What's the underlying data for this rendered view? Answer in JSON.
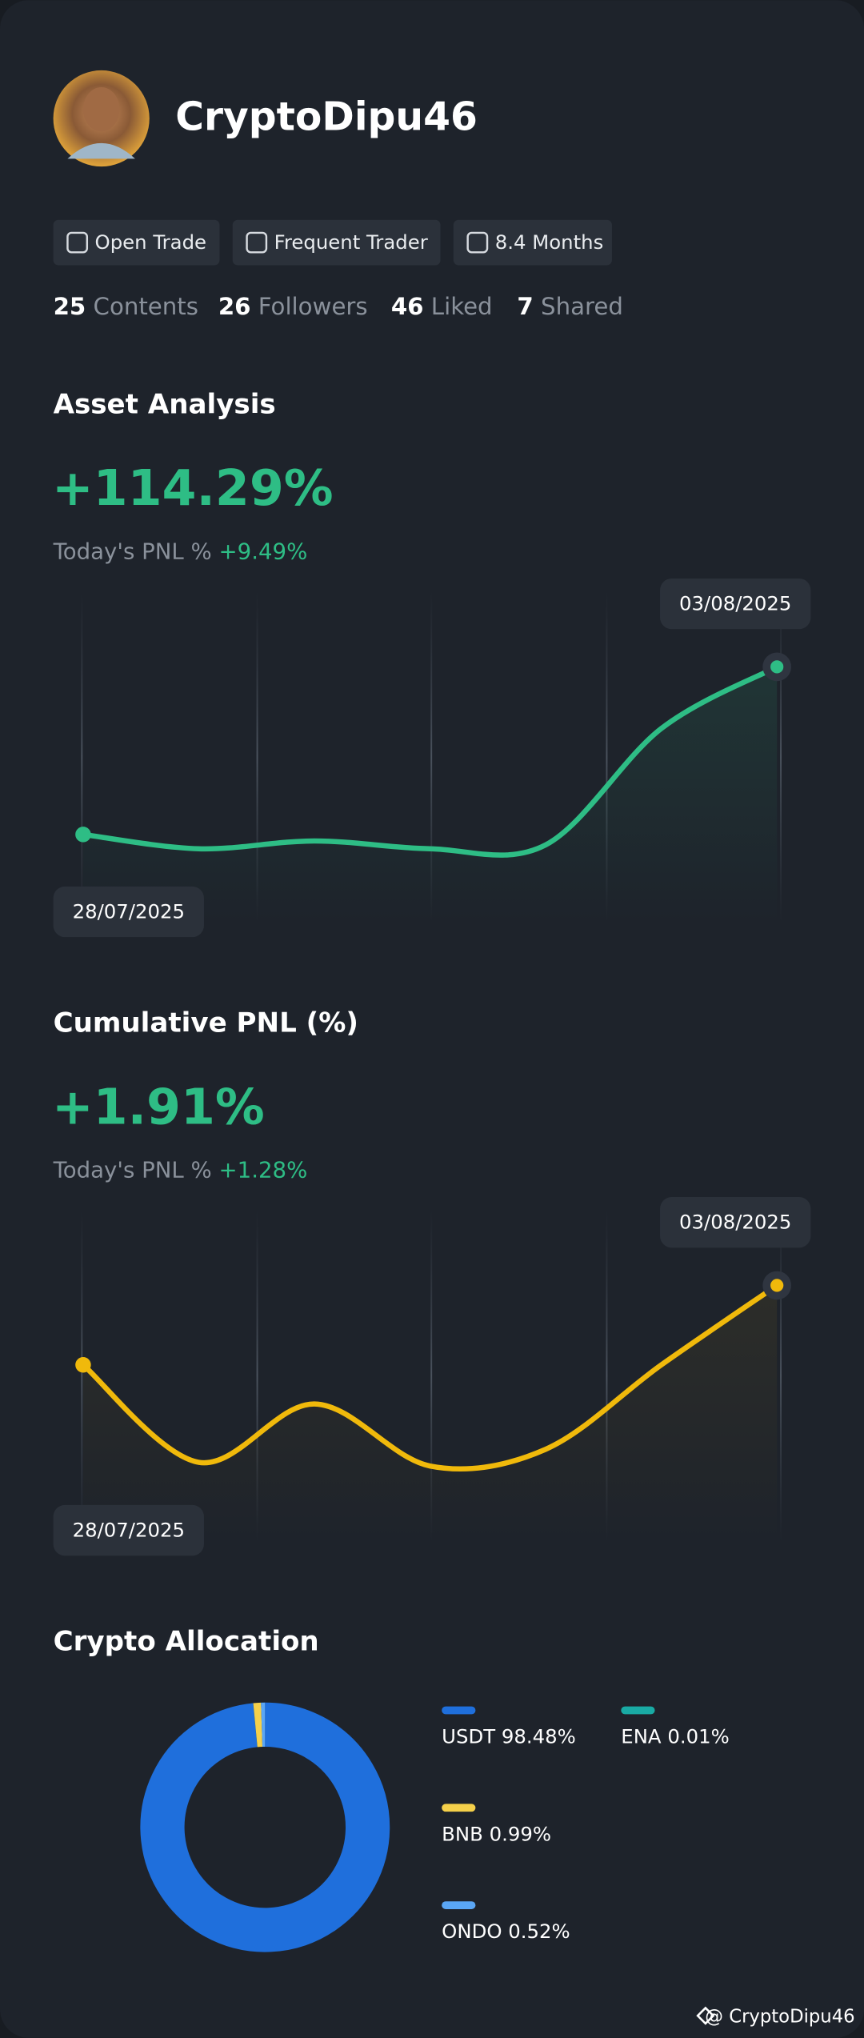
{
  "profile": {
    "name": "CryptoDipu46"
  },
  "badges": [
    "Open Trade",
    "Frequent Trader",
    "8.4 Months"
  ],
  "stats": [
    {
      "value": 25,
      "label": "Contents"
    },
    {
      "value": 26,
      "label": "Followers"
    },
    {
      "value": 46,
      "label": "Liked"
    },
    {
      "value": 7,
      "label": "Shared"
    }
  ],
  "chart_data": [
    {
      "type": "line",
      "title": "Asset Analysis",
      "headline": "+114.29%",
      "pnl_label": "Today's PNL %",
      "pnl_value": "+9.49%",
      "categories": [
        "28/07/2025",
        null,
        null,
        null,
        null,
        null,
        "03/08/2025"
      ],
      "series": [
        {
          "color": "#2ebd85",
          "values": [
            88.5,
            86.3,
            87.5,
            86.3,
            86.9,
            104.8,
            114.29
          ]
        }
      ]
    },
    {
      "type": "line",
      "title": "Cumulative PNL (%)",
      "headline": "+1.91%",
      "pnl_label": "Today's PNL %",
      "pnl_value": "+1.28%",
      "categories": [
        "28/07/2025",
        null,
        null,
        null,
        null,
        null,
        "03/08/2025"
      ],
      "series": [
        {
          "color": "#f0b90b",
          "values": [
            0.63,
            -0.94,
            0.0,
            -1.0,
            -0.73,
            0.63,
            1.91
          ]
        }
      ]
    },
    {
      "type": "pie",
      "title": "Crypto Allocation",
      "categories": [
        "USDT",
        "ENA",
        "BNB",
        "ONDO"
      ],
      "values": [
        98.48,
        0.01,
        0.99,
        0.52
      ],
      "value_labels": [
        "98.48%",
        "0.01%",
        "0.99%",
        "0.52%"
      ],
      "colors": [
        "#1f6fdc",
        "#19aaa4",
        "#f5d04a",
        "#5aa6f5"
      ]
    }
  ],
  "footer": "@ CryptoDipu46"
}
